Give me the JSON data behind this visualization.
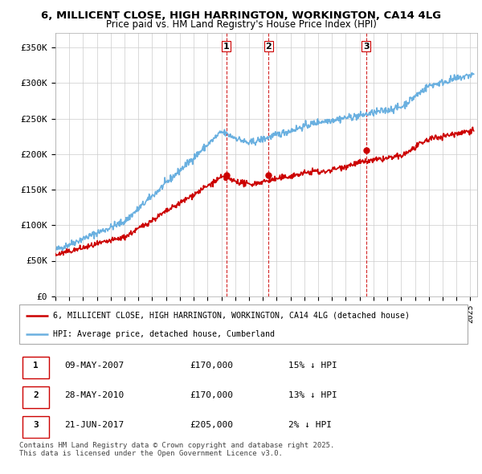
{
  "title1": "6, MILLICENT CLOSE, HIGH HARRINGTON, WORKINGTON, CA14 4LG",
  "title2": "Price paid vs. HM Land Registry's House Price Index (HPI)",
  "ylabel_ticks": [
    "£0",
    "£50K",
    "£100K",
    "£150K",
    "£200K",
    "£250K",
    "£300K",
    "£350K"
  ],
  "ytick_values": [
    0,
    50000,
    100000,
    150000,
    200000,
    250000,
    300000,
    350000
  ],
  "ylim": [
    0,
    370000
  ],
  "xlim_start": 1995.0,
  "xlim_end": 2025.5,
  "hpi_color": "#6ab0e0",
  "price_color": "#cc0000",
  "vline_color": "#cc0000",
  "grid_color": "#cccccc",
  "sale1_x": 2007.354,
  "sale1_price": 170000,
  "sale2_x": 2010.406,
  "sale2_price": 170000,
  "sale3_x": 2017.472,
  "sale3_price": 205000,
  "legend_label_red": "6, MILLICENT CLOSE, HIGH HARRINGTON, WORKINGTON, CA14 4LG (detached house)",
  "legend_label_blue": "HPI: Average price, detached house, Cumberland",
  "table_data": [
    {
      "num": "1",
      "date": "09-MAY-2007",
      "price": "£170,000",
      "hpi": "15% ↓ HPI"
    },
    {
      "num": "2",
      "date": "28-MAY-2010",
      "price": "£170,000",
      "hpi": "13% ↓ HPI"
    },
    {
      "num": "3",
      "date": "21-JUN-2017",
      "price": "£205,000",
      "hpi": "2% ↓ HPI"
    }
  ],
  "footnote": "Contains HM Land Registry data © Crown copyright and database right 2025.\nThis data is licensed under the Open Government Licence v3.0."
}
